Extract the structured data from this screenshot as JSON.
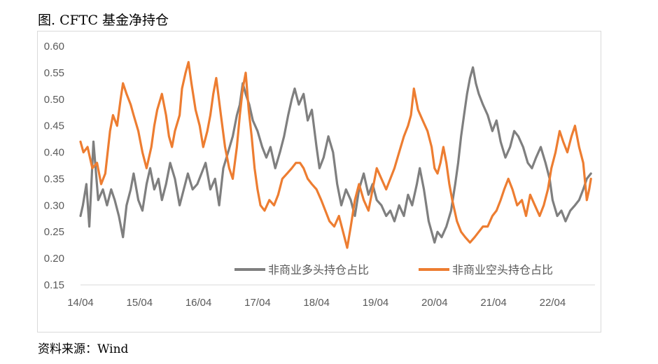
{
  "figure": {
    "title": "图. CFTC 基金净持仓",
    "source": "资料来源：Wind"
  },
  "chart_data": {
    "type": "line",
    "title": "",
    "xlabel": "",
    "ylabel": "",
    "ylim": [
      0.15,
      0.6
    ],
    "yticks": [
      "0.15",
      "0.20",
      "0.25",
      "0.30",
      "0.35",
      "0.40",
      "0.45",
      "0.50",
      "0.55",
      "0.60"
    ],
    "xticks": [
      "14/04",
      "15/04",
      "16/04",
      "17/04",
      "18/04",
      "19/04",
      "20/04",
      "21/04",
      "22/04"
    ],
    "grid": false,
    "legend": "bottom-inside",
    "series": [
      {
        "name": "非商业多头持仓占比",
        "color": "#7f7f7f",
        "points": [
          [
            0,
            0.28
          ],
          [
            0.04,
            0.3
          ],
          [
            0.1,
            0.34
          ],
          [
            0.15,
            0.26
          ],
          [
            0.22,
            0.42
          ],
          [
            0.3,
            0.31
          ],
          [
            0.38,
            0.33
          ],
          [
            0.45,
            0.3
          ],
          [
            0.52,
            0.33
          ],
          [
            0.58,
            0.31
          ],
          [
            0.65,
            0.28
          ],
          [
            0.72,
            0.24
          ],
          [
            0.78,
            0.3
          ],
          [
            0.85,
            0.33
          ],
          [
            0.9,
            0.36
          ],
          [
            0.98,
            0.31
          ],
          [
            1.05,
            0.29
          ],
          [
            1.12,
            0.34
          ],
          [
            1.18,
            0.37
          ],
          [
            1.25,
            0.33
          ],
          [
            1.32,
            0.35
          ],
          [
            1.38,
            0.31
          ],
          [
            1.45,
            0.34
          ],
          [
            1.52,
            0.38
          ],
          [
            1.6,
            0.35
          ],
          [
            1.68,
            0.3
          ],
          [
            1.75,
            0.33
          ],
          [
            1.82,
            0.36
          ],
          [
            1.9,
            0.33
          ],
          [
            1.98,
            0.34
          ],
          [
            2.05,
            0.36
          ],
          [
            2.12,
            0.38
          ],
          [
            2.2,
            0.33
          ],
          [
            2.28,
            0.35
          ],
          [
            2.35,
            0.3
          ],
          [
            2.42,
            0.37
          ],
          [
            2.5,
            0.4
          ],
          [
            2.58,
            0.43
          ],
          [
            2.65,
            0.47
          ],
          [
            2.7,
            0.49
          ],
          [
            2.75,
            0.53
          ],
          [
            2.8,
            0.51
          ],
          [
            2.86,
            0.49
          ],
          [
            2.92,
            0.46
          ],
          [
            3.0,
            0.44
          ],
          [
            3.08,
            0.41
          ],
          [
            3.15,
            0.39
          ],
          [
            3.22,
            0.41
          ],
          [
            3.3,
            0.37
          ],
          [
            3.38,
            0.4
          ],
          [
            3.45,
            0.43
          ],
          [
            3.52,
            0.47
          ],
          [
            3.58,
            0.5
          ],
          [
            3.63,
            0.52
          ],
          [
            3.7,
            0.49
          ],
          [
            3.78,
            0.51
          ],
          [
            3.85,
            0.46
          ],
          [
            3.92,
            0.48
          ],
          [
            4.0,
            0.41
          ],
          [
            4.05,
            0.37
          ],
          [
            4.12,
            0.39
          ],
          [
            4.2,
            0.43
          ],
          [
            4.28,
            0.4
          ],
          [
            4.35,
            0.34
          ],
          [
            4.42,
            0.3
          ],
          [
            4.5,
            0.33
          ],
          [
            4.58,
            0.31
          ],
          [
            4.65,
            0.28
          ],
          [
            4.72,
            0.33
          ],
          [
            4.8,
            0.36
          ],
          [
            4.88,
            0.32
          ],
          [
            4.95,
            0.34
          ],
          [
            5.02,
            0.31
          ],
          [
            5.1,
            0.3
          ],
          [
            5.18,
            0.28
          ],
          [
            5.25,
            0.29
          ],
          [
            5.32,
            0.27
          ],
          [
            5.4,
            0.3
          ],
          [
            5.48,
            0.28
          ],
          [
            5.55,
            0.32
          ],
          [
            5.62,
            0.3
          ],
          [
            5.7,
            0.34
          ],
          [
            5.75,
            0.37
          ],
          [
            5.82,
            0.33
          ],
          [
            5.9,
            0.27
          ],
          [
            5.95,
            0.25
          ],
          [
            6.0,
            0.23
          ],
          [
            6.05,
            0.25
          ],
          [
            6.12,
            0.24
          ],
          [
            6.2,
            0.26
          ],
          [
            6.28,
            0.29
          ],
          [
            6.35,
            0.34
          ],
          [
            6.4,
            0.38
          ],
          [
            6.45,
            0.43
          ],
          [
            6.5,
            0.47
          ],
          [
            6.55,
            0.51
          ],
          [
            6.6,
            0.54
          ],
          [
            6.65,
            0.56
          ],
          [
            6.7,
            0.53
          ],
          [
            6.75,
            0.51
          ],
          [
            6.82,
            0.49
          ],
          [
            6.9,
            0.47
          ],
          [
            6.98,
            0.44
          ],
          [
            7.05,
            0.46
          ],
          [
            7.12,
            0.42
          ],
          [
            7.2,
            0.39
          ],
          [
            7.28,
            0.41
          ],
          [
            7.35,
            0.44
          ],
          [
            7.42,
            0.43
          ],
          [
            7.5,
            0.41
          ],
          [
            7.58,
            0.38
          ],
          [
            7.65,
            0.37
          ],
          [
            7.72,
            0.39
          ],
          [
            7.8,
            0.41
          ],
          [
            7.88,
            0.38
          ],
          [
            7.95,
            0.35
          ],
          [
            8.0,
            0.31
          ],
          [
            8.08,
            0.28
          ],
          [
            8.15,
            0.29
          ],
          [
            8.22,
            0.27
          ],
          [
            8.3,
            0.29
          ],
          [
            8.38,
            0.3
          ],
          [
            8.45,
            0.31
          ],
          [
            8.52,
            0.33
          ],
          [
            8.58,
            0.35
          ],
          [
            8.65,
            0.36
          ]
        ]
      },
      {
        "name": "非商业空头持仓占比",
        "color": "#ed7d31",
        "points": [
          [
            0,
            0.42
          ],
          [
            0.05,
            0.4
          ],
          [
            0.12,
            0.41
          ],
          [
            0.2,
            0.37
          ],
          [
            0.28,
            0.38
          ],
          [
            0.35,
            0.34
          ],
          [
            0.42,
            0.36
          ],
          [
            0.5,
            0.44
          ],
          [
            0.55,
            0.47
          ],
          [
            0.62,
            0.45
          ],
          [
            0.68,
            0.5
          ],
          [
            0.72,
            0.53
          ],
          [
            0.78,
            0.51
          ],
          [
            0.85,
            0.49
          ],
          [
            0.9,
            0.47
          ],
          [
            0.98,
            0.44
          ],
          [
            1.05,
            0.4
          ],
          [
            1.12,
            0.37
          ],
          [
            1.2,
            0.41
          ],
          [
            1.25,
            0.45
          ],
          [
            1.3,
            0.48
          ],
          [
            1.38,
            0.51
          ],
          [
            1.45,
            0.47
          ],
          [
            1.5,
            0.43
          ],
          [
            1.55,
            0.41
          ],
          [
            1.6,
            0.44
          ],
          [
            1.68,
            0.47
          ],
          [
            1.72,
            0.52
          ],
          [
            1.78,
            0.55
          ],
          [
            1.83,
            0.57
          ],
          [
            1.88,
            0.53
          ],
          [
            1.95,
            0.48
          ],
          [
            2.02,
            0.45
          ],
          [
            2.08,
            0.41
          ],
          [
            2.15,
            0.44
          ],
          [
            2.2,
            0.47
          ],
          [
            2.25,
            0.51
          ],
          [
            2.3,
            0.54
          ],
          [
            2.38,
            0.47
          ],
          [
            2.45,
            0.41
          ],
          [
            2.52,
            0.37
          ],
          [
            2.58,
            0.35
          ],
          [
            2.65,
            0.41
          ],
          [
            2.7,
            0.47
          ],
          [
            2.75,
            0.52
          ],
          [
            2.8,
            0.55
          ],
          [
            2.85,
            0.48
          ],
          [
            2.9,
            0.43
          ],
          [
            2.95,
            0.37
          ],
          [
            3.0,
            0.33
          ],
          [
            3.05,
            0.3
          ],
          [
            3.12,
            0.29
          ],
          [
            3.2,
            0.31
          ],
          [
            3.28,
            0.3
          ],
          [
            3.35,
            0.32
          ],
          [
            3.42,
            0.35
          ],
          [
            3.5,
            0.36
          ],
          [
            3.58,
            0.37
          ],
          [
            3.65,
            0.38
          ],
          [
            3.72,
            0.38
          ],
          [
            3.78,
            0.37
          ],
          [
            3.85,
            0.35
          ],
          [
            3.92,
            0.34
          ],
          [
            4.0,
            0.33
          ],
          [
            4.08,
            0.31
          ],
          [
            4.15,
            0.29
          ],
          [
            4.22,
            0.27
          ],
          [
            4.3,
            0.26
          ],
          [
            4.38,
            0.28
          ],
          [
            4.45,
            0.25
          ],
          [
            4.52,
            0.22
          ],
          [
            4.58,
            0.26
          ],
          [
            4.65,
            0.31
          ],
          [
            4.72,
            0.34
          ],
          [
            4.8,
            0.31
          ],
          [
            4.88,
            0.29
          ],
          [
            4.95,
            0.33
          ],
          [
            5.02,
            0.37
          ],
          [
            5.1,
            0.35
          ],
          [
            5.18,
            0.33
          ],
          [
            5.25,
            0.35
          ],
          [
            5.32,
            0.37
          ],
          [
            5.4,
            0.4
          ],
          [
            5.48,
            0.43
          ],
          [
            5.55,
            0.45
          ],
          [
            5.6,
            0.47
          ],
          [
            5.65,
            0.52
          ],
          [
            5.72,
            0.48
          ],
          [
            5.8,
            0.46
          ],
          [
            5.88,
            0.44
          ],
          [
            5.95,
            0.41
          ],
          [
            6.0,
            0.37
          ],
          [
            6.05,
            0.36
          ],
          [
            6.1,
            0.38
          ],
          [
            6.15,
            0.41
          ],
          [
            6.2,
            0.38
          ],
          [
            6.25,
            0.34
          ],
          [
            6.3,
            0.31
          ],
          [
            6.38,
            0.27
          ],
          [
            6.45,
            0.25
          ],
          [
            6.52,
            0.24
          ],
          [
            6.6,
            0.23
          ],
          [
            6.68,
            0.24
          ],
          [
            6.75,
            0.25
          ],
          [
            6.82,
            0.26
          ],
          [
            6.9,
            0.26
          ],
          [
            6.98,
            0.28
          ],
          [
            7.05,
            0.29
          ],
          [
            7.12,
            0.31
          ],
          [
            7.18,
            0.33
          ],
          [
            7.25,
            0.35
          ],
          [
            7.32,
            0.33
          ],
          [
            7.4,
            0.3
          ],
          [
            7.48,
            0.31
          ],
          [
            7.55,
            0.28
          ],
          [
            7.62,
            0.32
          ],
          [
            7.7,
            0.3
          ],
          [
            7.78,
            0.28
          ],
          [
            7.85,
            0.3
          ],
          [
            7.92,
            0.33
          ],
          [
            7.98,
            0.37
          ],
          [
            8.05,
            0.4
          ],
          [
            8.12,
            0.44
          ],
          [
            8.18,
            0.42
          ],
          [
            8.25,
            0.4
          ],
          [
            8.32,
            0.43
          ],
          [
            8.38,
            0.45
          ],
          [
            8.45,
            0.41
          ],
          [
            8.52,
            0.38
          ],
          [
            8.58,
            0.31
          ],
          [
            8.62,
            0.33
          ],
          [
            8.65,
            0.35
          ]
        ]
      }
    ]
  }
}
